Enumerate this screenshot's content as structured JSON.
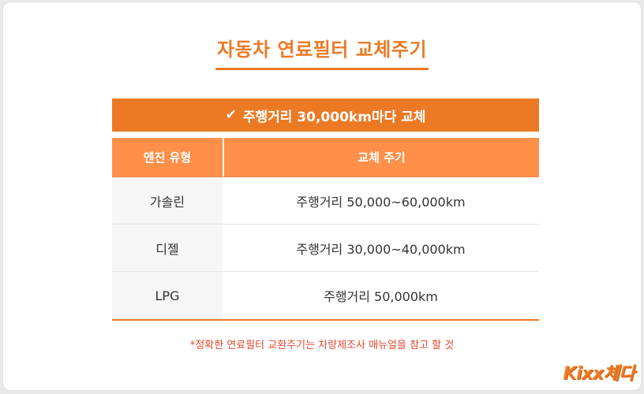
{
  "title": "자동차 연료필터 교체주기",
  "banner": {
    "check": "✔",
    "text": "주행거리 30,000km마다 교체"
  },
  "table": {
    "headers": [
      "엔진 유형",
      "교체 주기"
    ],
    "rows": [
      {
        "engine": "가솔린",
        "cycle": "주행거리 50,000~60,000km"
      },
      {
        "engine": "디젤",
        "cycle": "주행거리 30,000~40,000km"
      },
      {
        "engine": "LPG",
        "cycle": "주행거리 50,000km"
      }
    ]
  },
  "note": "*정확한 연료필터 교환주기는 차량제조사 매뉴얼을 참고 할 것",
  "logo": "Kixx체다",
  "colors": {
    "accent": "#ec7a25",
    "header": "#ff8f49",
    "note": "#e2482e"
  }
}
